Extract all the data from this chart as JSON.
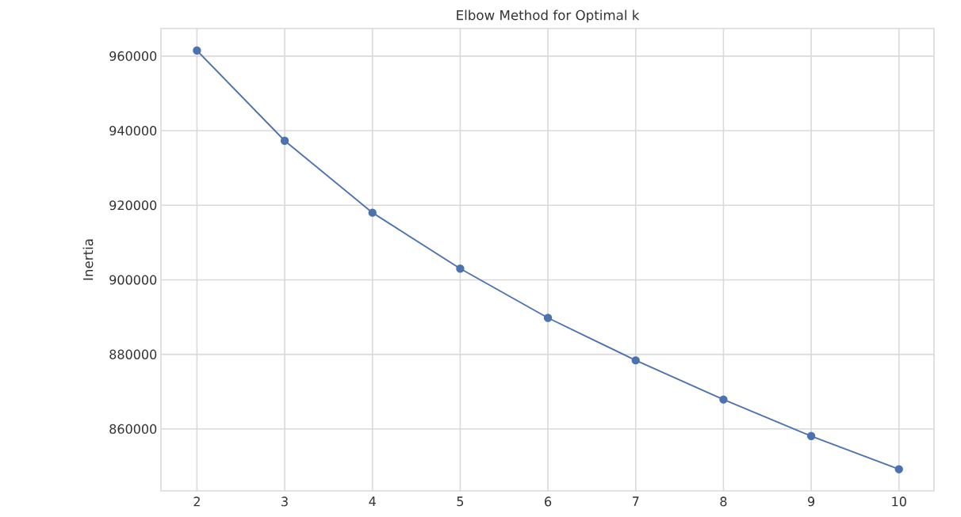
{
  "chart_data": {
    "type": "line",
    "title": "Elbow Method for Optimal k",
    "ylabel": "Inertia",
    "x": [
      2,
      3,
      4,
      5,
      6,
      7,
      8,
      9,
      10
    ],
    "values": [
      961500,
      937300,
      918000,
      903000,
      889800,
      878400,
      867900,
      858100,
      849200
    ],
    "color": "#4c72b0",
    "marker": "circle",
    "line_style": "solid",
    "grid": true,
    "xlim": [
      1.59,
      10.4
    ],
    "ylim": [
      843400,
      967400
    ],
    "xticks": [
      2,
      3,
      4,
      5,
      6,
      7,
      8,
      9,
      10
    ],
    "yticks": [
      860000,
      880000,
      900000,
      920000,
      940000,
      960000
    ]
  }
}
